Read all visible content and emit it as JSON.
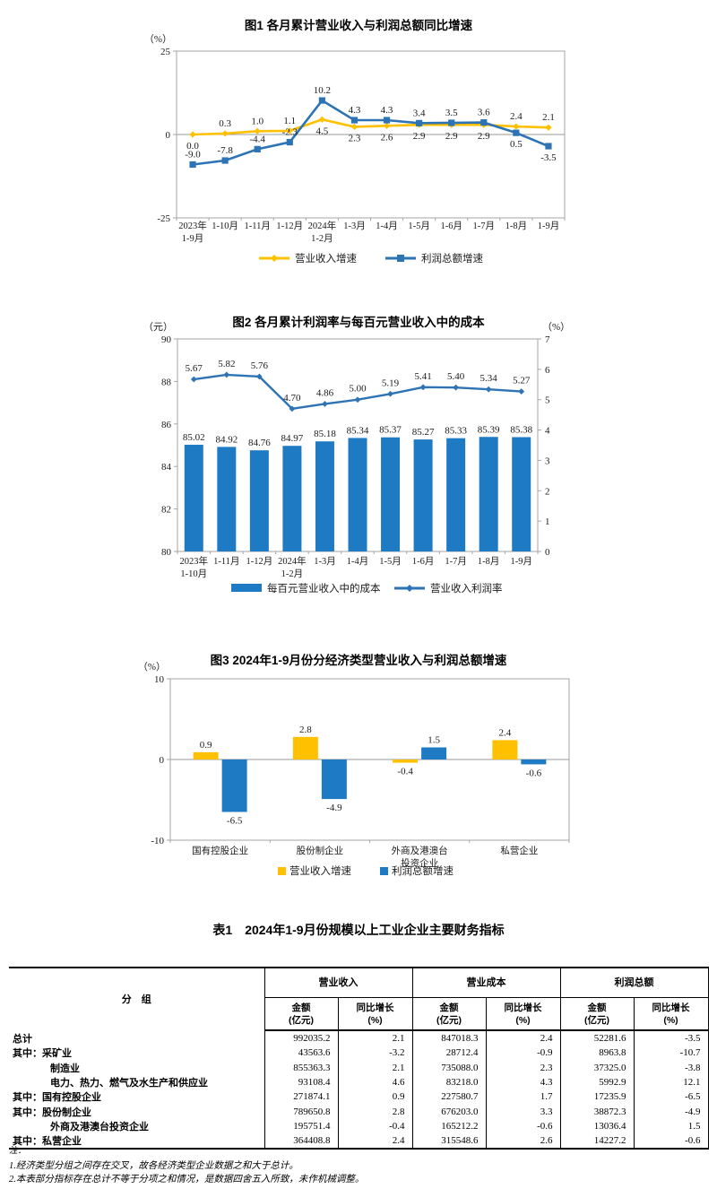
{
  "chart_data": [
    {
      "id": "fig1",
      "type": "line",
      "title": "图1  各月累计营业收入与利润总额同比增速",
      "y_unit": "（%）",
      "ylim": [
        -25,
        25
      ],
      "yticks": [
        "25",
        "0",
        "-25"
      ],
      "categories": [
        "2023年\n1-9月",
        "1-10月",
        "1-11月",
        "1-12月",
        "2024年\n1-2月",
        "1-3月",
        "1-4月",
        "1-5月",
        "1-6月",
        "1-7月",
        "1-8月",
        "1-9月"
      ],
      "legend_position": "bottom",
      "grid": false,
      "series": [
        {
          "name": "营业收入增速",
          "color": "#FFC000",
          "marker": "diamond",
          "values": [
            0.0,
            0.3,
            1.0,
            1.1,
            4.5,
            2.3,
            2.6,
            2.9,
            2.9,
            2.9,
            2.4,
            2.1
          ],
          "labels": [
            "0.0",
            "0.3",
            "1.0",
            "1.1",
            "4.5",
            "2.3",
            "2.6",
            "2.9",
            "2.9",
            "2.9",
            "2.4",
            "2.1"
          ],
          "label_pos": [
            "below",
            "above",
            "above",
            "above",
            "below",
            "below",
            "below",
            "below",
            "below",
            "below",
            "above",
            "above"
          ]
        },
        {
          "name": "利润总额增速",
          "color": "#2E74B5",
          "marker": "square",
          "values": [
            -9.0,
            -7.8,
            -4.4,
            -2.3,
            10.2,
            4.3,
            4.3,
            3.4,
            3.5,
            3.6,
            0.5,
            -3.5
          ],
          "labels": [
            "-9.0",
            "-7.8",
            "-4.4",
            "-2.3",
            "10.2",
            "4.3",
            "4.3",
            "3.4",
            "3.5",
            "3.6",
            "0.5",
            "-3.5"
          ],
          "label_pos": [
            "above",
            "above",
            "above",
            "above",
            "above",
            "above",
            "above",
            "above",
            "above",
            "above",
            "below",
            "below"
          ]
        }
      ]
    },
    {
      "id": "fig2",
      "type": "combo-bar-line",
      "title": "图2  各月累计利润率与每百元营业收入中的成本",
      "y_unit": "（元）",
      "y2_unit": "（%）",
      "ylim": [
        80,
        90
      ],
      "yticks": [
        "90",
        "88",
        "86",
        "84",
        "82",
        "80"
      ],
      "y2lim": [
        0,
        7
      ],
      "y2ticks": [
        "7",
        "6",
        "5",
        "4",
        "3",
        "2",
        "1",
        "0"
      ],
      "categories": [
        "2023年\n1-10月",
        "1-11月",
        "1-12月",
        "2024年\n1-2月",
        "1-3月",
        "1-4月",
        "1-5月",
        "1-6月",
        "1-7月",
        "1-8月",
        "1-9月"
      ],
      "legend_position": "bottom",
      "grid": false,
      "bar": {
        "name": "每百元营业收入中的成本",
        "color": "#1F7AC4",
        "axis": "left",
        "values": [
          85.02,
          84.92,
          84.76,
          84.97,
          85.18,
          85.34,
          85.37,
          85.27,
          85.33,
          85.39,
          85.38
        ],
        "labels": [
          "85.02",
          "84.92",
          "84.76",
          "84.97",
          "85.18",
          "85.34",
          "85.37",
          "85.27",
          "85.33",
          "85.39",
          "85.38"
        ]
      },
      "line": {
        "name": "营业收入利润率",
        "color": "#2E74B5",
        "marker": "diamond",
        "axis": "right",
        "values": [
          5.67,
          5.82,
          5.76,
          4.7,
          4.86,
          5.0,
          5.19,
          5.41,
          5.4,
          5.34,
          5.27
        ],
        "labels": [
          "5.67",
          "5.82",
          "5.76",
          "4.70",
          "4.86",
          "5.00",
          "5.19",
          "5.41",
          "5.40",
          "5.34",
          "5.27"
        ]
      }
    },
    {
      "id": "fig3",
      "type": "grouped-bar",
      "title": "图3  2024年1-9月份分经济类型营业收入与利润总额增速",
      "y_unit": "（%）",
      "ylim": [
        -10,
        10
      ],
      "yticks": [
        "10",
        "0",
        "-10"
      ],
      "categories": [
        "国有控股企业",
        "股份制企业",
        "外商及港澳台\n投资企业",
        "私营企业"
      ],
      "legend_position": "bottom",
      "grid": false,
      "series": [
        {
          "name": "营业收入增速",
          "color": "#FFC000",
          "values": [
            0.9,
            2.8,
            -0.4,
            2.4
          ],
          "labels": [
            "0.9",
            "2.8",
            "-0.4",
            "2.4"
          ]
        },
        {
          "name": "利润总额增速",
          "color": "#1F7AC4",
          "values": [
            -6.5,
            -4.9,
            1.5,
            -0.6
          ],
          "labels": [
            "-6.5",
            "-4.9",
            "1.5",
            "-0.6"
          ]
        }
      ]
    }
  ],
  "table": {
    "title": "表1　2024年1-9月份规模以上工业企业主要财务指标",
    "group_label": "分　组",
    "col_groups": [
      "营业收入",
      "营业成本",
      "利润总额"
    ],
    "sub_headers": {
      "amount": "金额\n(亿元)",
      "growth": "同比增长\n(%)"
    },
    "rows": [
      {
        "label": "总计",
        "indent": 0,
        "values": [
          "992035.2",
          "2.1",
          "847018.3",
          "2.4",
          "52281.6",
          "-3.5"
        ]
      },
      {
        "label": "其中：采矿业",
        "indent": 0,
        "values": [
          "43563.6",
          "-3.2",
          "28712.4",
          "-0.9",
          "8963.8",
          "-10.7"
        ]
      },
      {
        "label": "制造业",
        "indent": 1,
        "values": [
          "855363.3",
          "2.1",
          "735088.0",
          "2.3",
          "37325.0",
          "-3.8"
        ]
      },
      {
        "label": "电力、热力、燃气及水生产和供应业",
        "indent": 1,
        "values": [
          "93108.4",
          "4.6",
          "83218.0",
          "4.3",
          "5992.9",
          "12.1"
        ]
      },
      {
        "label": "其中：国有控股企业",
        "indent": 0,
        "values": [
          "271874.1",
          "0.9",
          "227580.7",
          "1.7",
          "17235.9",
          "-6.5"
        ]
      },
      {
        "label": "其中：股份制企业",
        "indent": 0,
        "values": [
          "789650.8",
          "2.8",
          "676203.0",
          "3.3",
          "38872.3",
          "-4.9"
        ]
      },
      {
        "label": "外商及港澳台投资企业",
        "indent": 1,
        "values": [
          "195751.4",
          "-0.4",
          "165212.2",
          "-0.6",
          "13036.4",
          "1.5"
        ]
      },
      {
        "label": "其中：私营企业",
        "indent": 0,
        "values": [
          "364408.8",
          "2.4",
          "315548.6",
          "2.6",
          "14227.2",
          "-0.6"
        ]
      }
    ]
  },
  "notes": {
    "heading": "注：",
    "lines": [
      "1.经济类型分组之间存在交叉，故各经济类型企业数据之和大于总计。",
      "2.本表部分指标存在总计不等于分项之和情况，是数据四舍五入所致，未作机械调整。"
    ]
  }
}
